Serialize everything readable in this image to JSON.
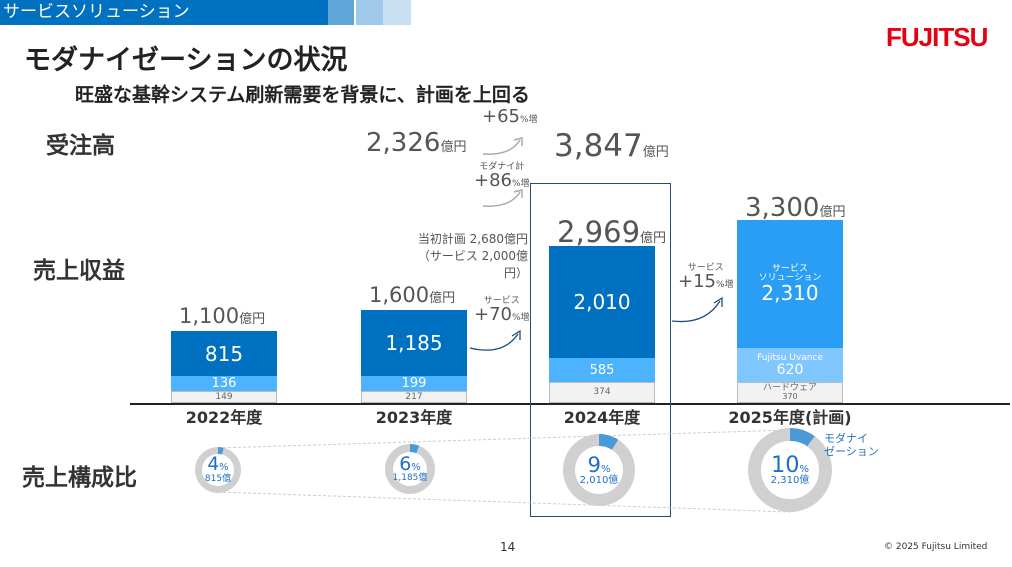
{
  "header": {
    "section": "サービスソリューション",
    "logo": "FUJITSU"
  },
  "title": "モダナイゼーションの状況",
  "subtitle": "旺盛な基幹システム刷新需要を背景に、計画を上回る",
  "labels": {
    "orders": "受注高",
    "revenue": "売上収益",
    "composition": "売上構成比",
    "unit": "億円"
  },
  "orders": {
    "fy2023": "2,326",
    "fy2024": "3,847",
    "growth_label": "+65",
    "growth_unit": "%増"
  },
  "modernization_growth": {
    "label": "モダナイ計",
    "value": "+86",
    "unit": "%増"
  },
  "initial_plan": {
    "line1": "当初計画 2,680億円",
    "line2": "（サービス 2,000億円）"
  },
  "growth_2023": {
    "label": "サービス",
    "value": "+70",
    "unit": "%増"
  },
  "growth_2025": {
    "label": "サービス",
    "value": "+15",
    "unit": "%増"
  },
  "colors": {
    "dark": "#0070c0",
    "light": "#4db3ff",
    "plan_main": "#2a9df4",
    "plan_light": "#80c6ff",
    "gray": "#f2f2f2"
  },
  "years": [
    {
      "year": "2022年度",
      "total": "1,100",
      "service": 815,
      "service_label": "815",
      "uvance": 136,
      "uvance_label": "136",
      "hw": 149,
      "hw_label": "149",
      "pct": "4",
      "pct_val": 4,
      "amt": "815億"
    },
    {
      "year": "2023年度",
      "total": "1,600",
      "service": 1185,
      "service_label": "1,185",
      "uvance": 199,
      "uvance_label": "199",
      "hw": 217,
      "hw_label": "217",
      "pct": "6",
      "pct_val": 6,
      "amt": "1,185億"
    },
    {
      "year": "2024年度",
      "total": "2,969",
      "service": 2010,
      "service_label": "2,010",
      "uvance": 585,
      "uvance_label": "585",
      "hw": 374,
      "hw_label": "374",
      "pct": "9",
      "pct_val": 9,
      "amt": "2,010億"
    },
    {
      "year": "2025年度(計画)",
      "total": "3,300",
      "service": 2310,
      "service_label": "2,310",
      "service_name": "サービス\nソリューション",
      "uvance": 620,
      "uvance_label": "620",
      "uvance_name": "Fujitsu Uvance",
      "hw": 370,
      "hw_label": "370",
      "hw_name": "ハードウェア",
      "pct": "10",
      "pct_val": 10,
      "amt": "2,310億"
    }
  ],
  "donut_legend": "モダナイ\nゼーション",
  "page": "14",
  "copyright": "© 2025 Fujitsu Limited"
}
